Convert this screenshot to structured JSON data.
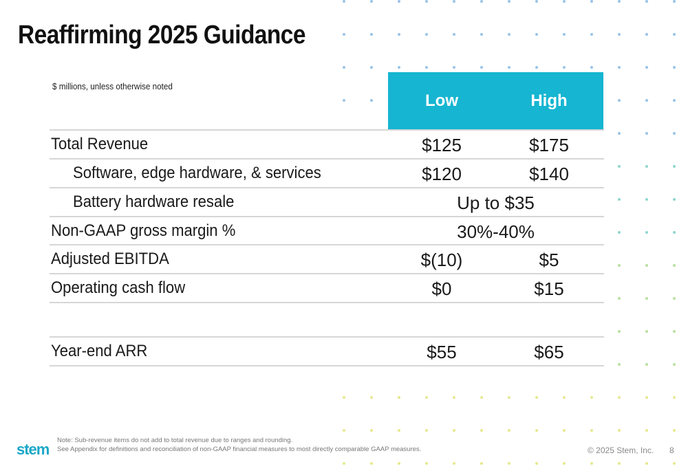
{
  "slide": {
    "title": "Reaffirming 2025 Guidance",
    "units_note": "$ millions, unless otherwise noted",
    "page_number": "8"
  },
  "table": {
    "headers": {
      "low": "Low",
      "high": "High"
    },
    "rows": [
      {
        "label": "Total Revenue",
        "low": "$125",
        "high": "$175"
      },
      {
        "label": "Software, edge hardware, & services",
        "low": "$120",
        "high": "$140"
      },
      {
        "label": "Battery hardware resale",
        "combined": "Up to $35"
      },
      {
        "label": "Non-GAAP gross margin %",
        "combined": "30%-40%"
      },
      {
        "label": "Adjusted EBITDA",
        "low": "$(10)",
        "high": "$5"
      },
      {
        "label": "Operating cash flow",
        "low": "$0",
        "high": "$15"
      },
      {
        "label": "Year-end ARR",
        "low": "$55",
        "high": "$65"
      }
    ]
  },
  "footer": {
    "logo_text": "stem",
    "note_line1": "Note: Sub-revenue items do not add to total revenue due to ranges and rounding.",
    "note_line2": "See Appendix for definitions and reconciliation of non-GAAP financial measures to most directly comparable GAAP measures.",
    "copyright": "© 2025 Stem, Inc."
  },
  "colors": {
    "accent": "#16b5d1",
    "dot_blue": "#9ac3e6",
    "dot_teal": "#8fd6cf",
    "dot_green": "#b9e0a0",
    "dot_yellow": "#e6e98e"
  }
}
